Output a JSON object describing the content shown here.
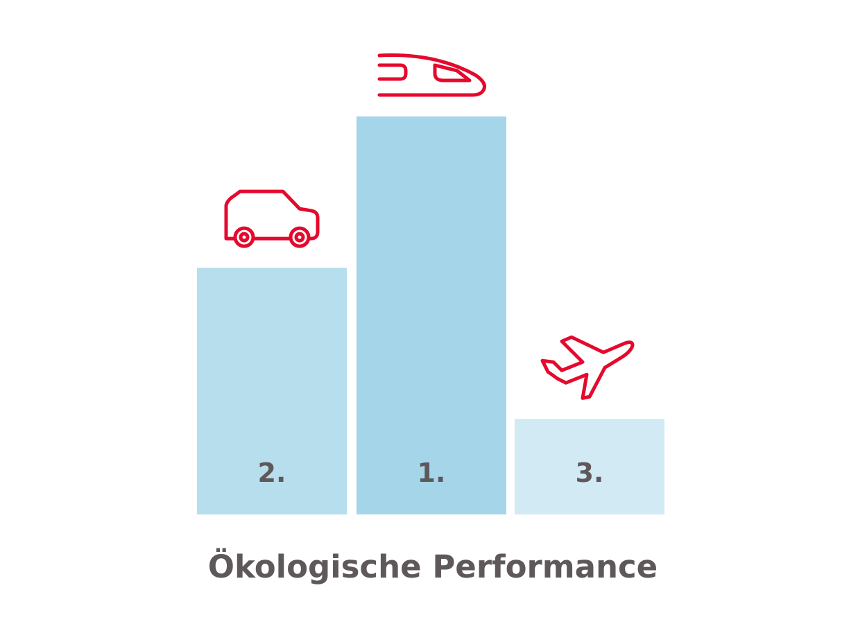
{
  "chart_data": {
    "type": "bar",
    "title": "Ökologische Performance",
    "categories": [
      "car",
      "train",
      "plane"
    ],
    "rank_labels": [
      "2.",
      "1.",
      "3."
    ],
    "values": [
      62,
      100,
      24
    ],
    "ylim": [
      0,
      100
    ],
    "grid": false,
    "icons": [
      "car-icon",
      "train-icon",
      "plane-icon"
    ],
    "bar_colors": [
      "#b7deed",
      "#a5d5e9",
      "#d2eaf4"
    ],
    "icon_color": "#e4092d",
    "text_color": "#5f585b"
  }
}
